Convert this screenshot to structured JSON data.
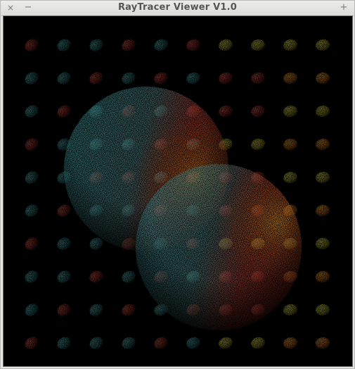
{
  "window": {
    "title": "RayTracer Viewer V1.0",
    "close_glyph": "×",
    "minimize_glyph": "−",
    "maximize_glyph": "+"
  },
  "scene": {
    "background_color": "#000000",
    "ball_rows": 10,
    "ball_cols": 10,
    "colors": {
      "teal": "#3f8f92",
      "red": "#a9342b",
      "orange": "#e0851c",
      "yellow": "#c9c635"
    }
  }
}
